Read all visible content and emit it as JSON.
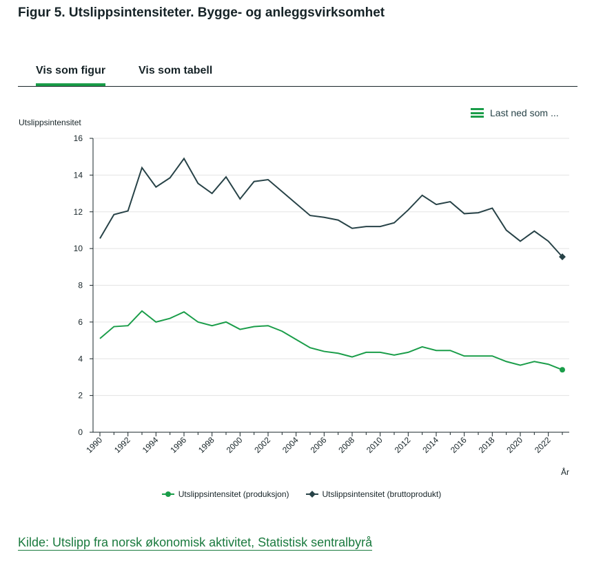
{
  "title": "Figur 5. Utslippsintensiteter. Bygge- og anleggsvirksomhet",
  "tabs": [
    {
      "label": "Vis som figur",
      "active": true
    },
    {
      "label": "Vis som tabell",
      "active": false
    }
  ],
  "download_label": "Last ned som ...",
  "source_link": "Kilde: Utslipp fra norsk økonomisk aktivitet, Statistisk sentralbyrå",
  "chart_data": {
    "type": "line",
    "title": "",
    "ylabel": "Utslippsintensitet",
    "xlabel": "År",
    "ylim": [
      0,
      16
    ],
    "yticks": [
      "0",
      "2",
      "4",
      "6",
      "8",
      "10",
      "12",
      "14",
      "16"
    ],
    "xticks": [
      "1990",
      "1992",
      "1994",
      "1996",
      "1998",
      "2000",
      "2002",
      "2004",
      "2006",
      "2008",
      "2010",
      "2012",
      "2014",
      "2016",
      "2018",
      "2020",
      "2022"
    ],
    "grid": true,
    "legend": "bottom",
    "x": [
      1990,
      1991,
      1992,
      1993,
      1994,
      1995,
      1996,
      1997,
      1998,
      1999,
      2000,
      2001,
      2002,
      2003,
      2004,
      2005,
      2006,
      2007,
      2008,
      2009,
      2010,
      2011,
      2012,
      2013,
      2014,
      2015,
      2016,
      2017,
      2018,
      2019,
      2020,
      2021,
      2022,
      2023
    ],
    "series": [
      {
        "name": "Utslippsintensitet (produksjon)",
        "color": "#1a9d49",
        "marker": "circle",
        "values": [
          5.1,
          5.75,
          5.8,
          6.6,
          6.0,
          6.2,
          6.55,
          6.0,
          5.8,
          6.0,
          5.6,
          5.75,
          5.8,
          5.5,
          5.05,
          4.6,
          4.4,
          4.3,
          4.1,
          4.35,
          4.35,
          4.2,
          4.35,
          4.65,
          4.45,
          4.45,
          4.15,
          4.15,
          4.15,
          3.85,
          3.65,
          3.85,
          3.7,
          3.4
        ]
      },
      {
        "name": "Utslippsintensitet (bruttoprodukt)",
        "color": "#274247",
        "marker": "diamond",
        "values": [
          10.55,
          11.85,
          12.05,
          14.4,
          13.35,
          13.85,
          14.9,
          13.55,
          13.0,
          13.9,
          12.7,
          13.65,
          13.75,
          13.1,
          12.45,
          11.8,
          11.7,
          11.55,
          11.1,
          11.2,
          11.2,
          11.4,
          12.1,
          12.9,
          12.4,
          12.55,
          11.9,
          11.95,
          12.2,
          11.0,
          10.4,
          10.95,
          10.4,
          9.55
        ]
      }
    ]
  }
}
